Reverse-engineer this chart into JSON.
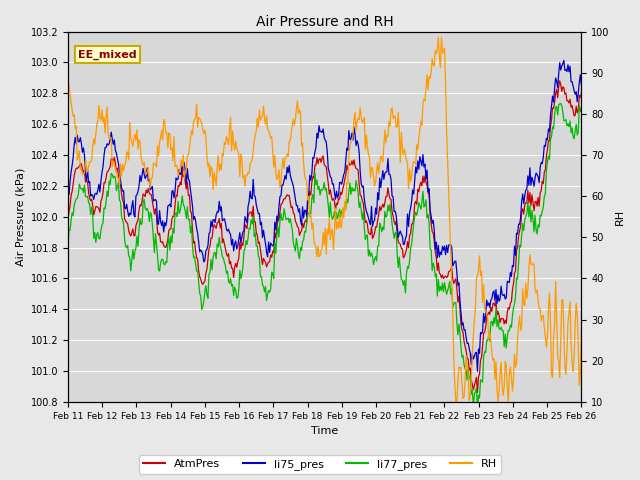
{
  "title": "Air Pressure and RH",
  "xlabel": "Time",
  "ylabel_left": "Air Pressure (kPa)",
  "ylabel_right": "RH",
  "annotation": "EE_mixed",
  "ylim_left": [
    100.8,
    103.2
  ],
  "ylim_right": [
    10,
    100
  ],
  "yticks_left": [
    100.8,
    101.0,
    101.2,
    101.4,
    101.6,
    101.8,
    102.0,
    102.2,
    102.4,
    102.6,
    102.8,
    103.0,
    103.2
  ],
  "yticks_right": [
    10,
    20,
    30,
    40,
    50,
    60,
    70,
    80,
    90,
    100
  ],
  "xtick_labels": [
    "Feb 11",
    "Feb 12",
    "Feb 13",
    "Feb 14",
    "Feb 15",
    "Feb 16",
    "Feb 17",
    "Feb 18",
    "Feb 19",
    "Feb 20",
    "Feb 21",
    "Feb 22",
    "Feb 23",
    "Feb 24",
    "Feb 25",
    "Feb 26"
  ],
  "colors": {
    "AtmPres": "#cc0000",
    "li75_pres": "#0000cc",
    "li77_pres": "#00bb00",
    "RH": "#ff9900"
  },
  "background_color": "#e8e8e8",
  "plot_bg_color": "#d8d8d8",
  "grid_color": "#ffffff",
  "annotation_bg": "#ffffcc",
  "annotation_border": "#ccaa00"
}
